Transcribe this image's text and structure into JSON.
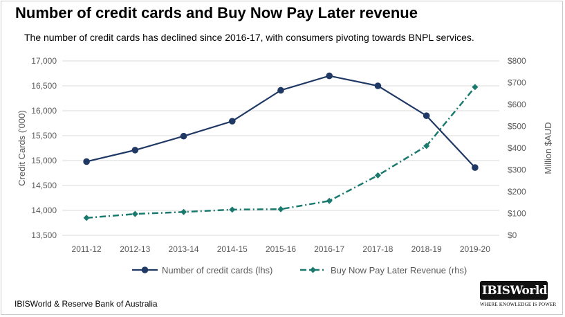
{
  "title": "Number of credit cards and Buy Now Pay Later revenue",
  "subtitle": "The number of credit cards has declined since 2016-17, with consumers pivoting towards BNPL services.",
  "source": "IBISWorld & Reserve Bank of Australia",
  "logo": {
    "word": "IBISWorld",
    "tagline": "WHERE KNOWLEDGE IS POWER"
  },
  "colors": {
    "credit": "#1f3864",
    "bnpl": "#1b7a6e",
    "grid": "#d9d9d9",
    "text": "#595959"
  },
  "chart_data": {
    "type": "line",
    "categories": [
      "2011-12",
      "2012-13",
      "2013-14",
      "2014-15",
      "2015-16",
      "2016-17",
      "2017-18",
      "2018-19",
      "2019-20"
    ],
    "ylabel_left": "Credit Cards ('000)",
    "ylabel_right": "Million $AUD",
    "ylim_left": [
      13500,
      17000
    ],
    "ylim_right": [
      0,
      800
    ],
    "yticks_left": [
      "13,500",
      "14,000",
      "14,500",
      "15,000",
      "15,500",
      "16,000",
      "16,500",
      "17,000"
    ],
    "yticks_right": [
      "$0",
      "$100",
      "$200",
      "$300",
      "$400",
      "$500",
      "$600",
      "$700",
      "$800"
    ],
    "grid": true,
    "legend_position": "bottom",
    "series": [
      {
        "name": "Number of credit cards (lhs)",
        "axis": "left",
        "style": "solid",
        "marker": "circle",
        "values": [
          14980,
          15210,
          15490,
          15790,
          16410,
          16700,
          16500,
          15900,
          14860
        ]
      },
      {
        "name": "Buy Now Pay Later Revenue (rhs)",
        "axis": "right",
        "style": "dashdot",
        "marker": "diamond",
        "values": [
          80,
          98,
          107,
          118,
          120,
          158,
          275,
          410,
          680
        ]
      }
    ]
  }
}
